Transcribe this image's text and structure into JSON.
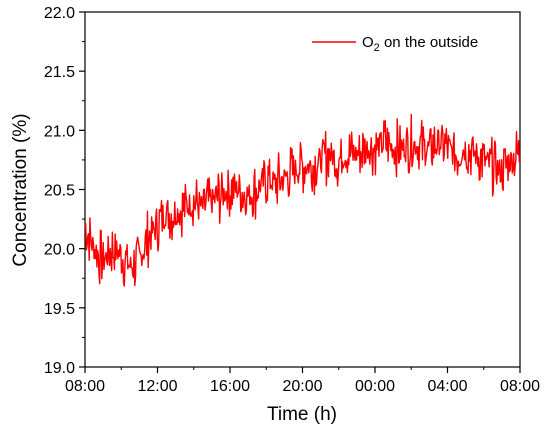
{
  "chart_data": {
    "type": "line",
    "xlabel": "Time (h)",
    "ylabel": "Concentration (%)",
    "ylim": [
      19.0,
      22.0
    ],
    "y_ticks": [
      "19.0",
      "19.5",
      "20.0",
      "20.5",
      "21.0",
      "21.5",
      "22.0"
    ],
    "x_ticks": [
      "08:00",
      "12:00",
      "16:00",
      "20:00",
      "00:00",
      "04:00",
      "08:00"
    ],
    "x_range_hours": [
      0,
      24
    ],
    "legend_position": "top-right",
    "series": [
      {
        "name": "O2 on the outside",
        "name_main": "O",
        "name_sub": "2",
        "name_rest": " on the outside",
        "color": "#ff0000",
        "x": [
          0,
          0.5,
          1,
          1.5,
          2,
          2.5,
          3,
          3.5,
          4,
          4.5,
          5,
          5.5,
          6,
          6.5,
          7,
          7.5,
          8,
          8.5,
          9,
          9.5,
          10,
          10.5,
          11,
          11.5,
          12,
          12.5,
          13,
          13.5,
          14,
          14.5,
          15,
          15.5,
          16,
          16.5,
          17,
          17.5,
          18,
          18.5,
          19,
          19.5,
          20,
          20.5,
          21,
          21.5,
          22,
          22.5,
          23,
          23.5,
          24
        ],
        "values": [
          20.2,
          20.0,
          19.9,
          20.0,
          19.95,
          19.85,
          19.9,
          20.1,
          20.2,
          20.3,
          20.3,
          20.35,
          20.4,
          20.35,
          20.4,
          20.45,
          20.5,
          20.5,
          20.45,
          20.5,
          20.6,
          20.55,
          20.6,
          20.65,
          20.7,
          20.7,
          20.75,
          20.8,
          20.75,
          20.8,
          20.8,
          20.85,
          20.85,
          20.9,
          20.85,
          20.85,
          20.9,
          20.85,
          20.85,
          20.9,
          20.85,
          20.8,
          20.85,
          20.8,
          20.75,
          20.7,
          20.65,
          20.75,
          20.8
        ]
      }
    ]
  }
}
